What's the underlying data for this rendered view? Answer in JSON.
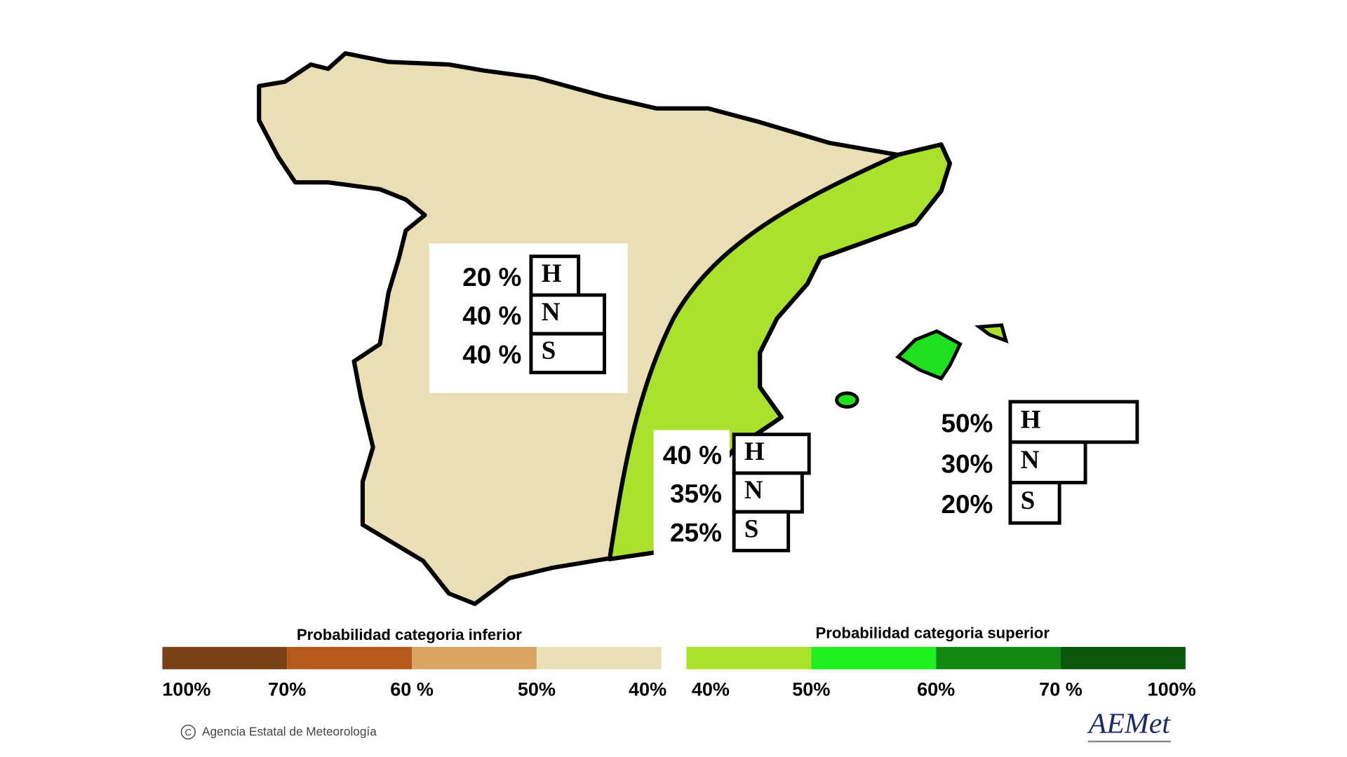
{
  "regions": [
    {
      "rows": [
        {
          "code": "H",
          "value": 20,
          "value_label": "20 %"
        },
        {
          "code": "N",
          "value": 40,
          "value_label": "40 %"
        },
        {
          "code": "S",
          "value": 40,
          "value_label": "40 %"
        }
      ]
    },
    {
      "rows": [
        {
          "code": "H",
          "value": 40,
          "value_label": "40 %"
        },
        {
          "code": "N",
          "value": 35,
          "value_label": "35%"
        },
        {
          "code": "S",
          "value": 25,
          "value_label": "25%"
        }
      ]
    },
    {
      "rows": [
        {
          "code": "H",
          "value": 50,
          "value_label": "50%"
        },
        {
          "code": "N",
          "value": 30,
          "value_label": "30%"
        },
        {
          "code": "S",
          "value": 20,
          "value_label": "20%"
        }
      ]
    }
  ],
  "legend": {
    "inferior": {
      "title": "Probabilidad categoria inferior",
      "colors": [
        "#7a4216",
        "#b65a1c",
        "#d7a560",
        "#e9e0b6"
      ],
      "labels": [
        "100%",
        "70%",
        "60 %",
        "50%",
        "40%"
      ]
    },
    "superior": {
      "title": "Probabilidad categoria superior",
      "colors": [
        "#a8e22c",
        "#1ff01f",
        "#128a12",
        "#0a560a"
      ],
      "labels": [
        "40%",
        "50%",
        "60%",
        "70 %",
        "100%"
      ]
    }
  },
  "footer": {
    "copyright": "Agencia Estatal de Meteorología",
    "logo": "AEMet"
  }
}
